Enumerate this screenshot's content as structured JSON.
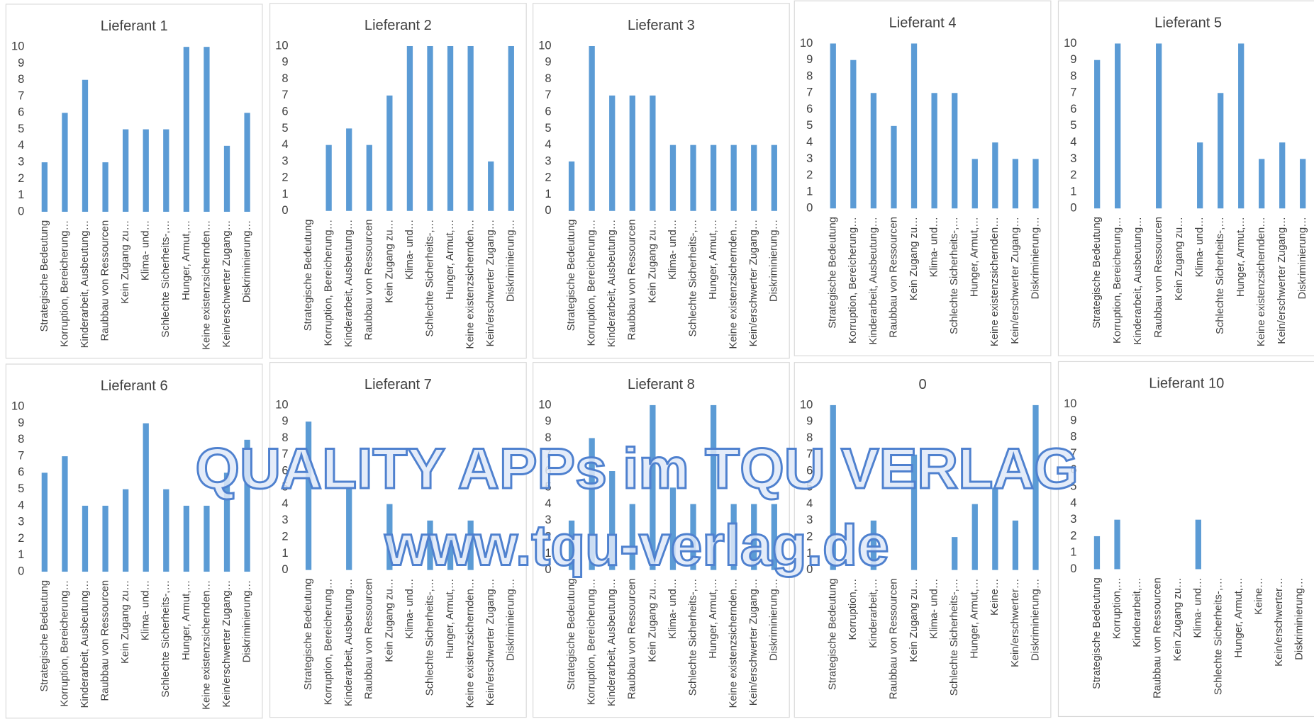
{
  "chart_data": [
    {
      "type": "bar",
      "title": "Lieferant 1",
      "categories": [
        "Strategische Bedeutung",
        "Korruption,  Bereicherung…",
        "Kinderarbeit, Ausbeutung…",
        "Raubbau von Ressourcen",
        "Kein Zugang zu…",
        "Klima- und…",
        "Schlechte Sicherheits-,…",
        "Hunger, Armut,…",
        "Keine existenzsichernden…",
        "Kein/erschwerter Zugang…",
        "Diskriminierung…"
      ],
      "values": [
        3,
        6,
        8,
        3,
        5,
        5,
        5,
        10,
        10,
        4,
        6
      ],
      "ylim": [
        0,
        10
      ],
      "yticks": [
        0,
        1,
        2,
        3,
        4,
        5,
        6,
        7,
        8,
        9,
        10
      ],
      "color": "#5b9bd5"
    },
    {
      "type": "bar",
      "title": "Lieferant 2",
      "categories": [
        "Strategische Bedeutung",
        "Korruption,  Bereicherung…",
        "Kinderarbeit, Ausbeutung…",
        "Raubbau von Ressourcen",
        "Kein Zugang zu…",
        "Klima- und…",
        "Schlechte Sicherheits-,…",
        "Hunger, Armut,…",
        "Keine existenzsichernden…",
        "Kein/erschwerter Zugang…",
        "Diskriminierung…"
      ],
      "values": [
        0,
        4,
        5,
        4,
        7,
        10,
        10,
        10,
        10,
        3,
        10
      ],
      "ylim": [
        0,
        10
      ],
      "yticks": [
        0,
        1,
        2,
        3,
        4,
        5,
        6,
        7,
        8,
        9,
        10
      ],
      "color": "#5b9bd5"
    },
    {
      "type": "bar",
      "title": "Lieferant 3",
      "categories": [
        "Strategische Bedeutung",
        "Korruption,  Bereicherung…",
        "Kinderarbeit, Ausbeutung…",
        "Raubbau von Ressourcen",
        "Kein Zugang zu…",
        "Klima- und…",
        "Schlechte Sicherheits-,…",
        "Hunger, Armut,…",
        "Keine existenzsichernden…",
        "Kein/erschwerter Zugang…",
        "Diskriminierung…"
      ],
      "values": [
        3,
        10,
        7,
        7,
        7,
        4,
        4,
        4,
        4,
        4,
        4
      ],
      "ylim": [
        0,
        10
      ],
      "yticks": [
        0,
        1,
        2,
        3,
        4,
        5,
        6,
        7,
        8,
        9,
        10
      ],
      "color": "#5b9bd5"
    },
    {
      "type": "bar",
      "title": "Lieferant 4",
      "categories": [
        "Strategische Bedeutung",
        "Korruption,  Bereicherung…",
        "Kinderarbeit, Ausbeutung…",
        "Raubbau von Ressourcen",
        "Kein Zugang zu…",
        "Klima- und…",
        "Schlechte Sicherheits-,…",
        "Hunger, Armut,…",
        "Keine existenzsichernden…",
        "Kein/erschwerter Zugang…",
        "Diskriminierung…"
      ],
      "values": [
        10,
        9,
        7,
        5,
        10,
        7,
        7,
        3,
        4,
        3,
        3
      ],
      "ylim": [
        0,
        10
      ],
      "yticks": [
        0,
        1,
        2,
        3,
        4,
        5,
        6,
        7,
        8,
        9,
        10
      ],
      "color": "#5b9bd5"
    },
    {
      "type": "bar",
      "title": "Lieferant 5",
      "categories": [
        "Strategische Bedeutung",
        "Korruption,  Bereicherung…",
        "Kinderarbeit, Ausbeutung…",
        "Raubbau von Ressourcen",
        "Kein Zugang zu…",
        "Klima- und…",
        "Schlechte Sicherheits-,…",
        "Hunger, Armut,…",
        "Keine existenzsichernden…",
        "Kein/erschwerter Zugang…",
        "Diskriminierung…"
      ],
      "values": [
        9,
        10,
        0,
        10,
        0,
        4,
        7,
        10,
        3,
        4,
        3
      ],
      "ylim": [
        0,
        10
      ],
      "yticks": [
        0,
        1,
        2,
        3,
        4,
        5,
        6,
        7,
        8,
        9,
        10
      ],
      "color": "#5b9bd5"
    },
    {
      "type": "bar",
      "title": "Lieferant 6",
      "categories": [
        "Strategische Bedeutung",
        "Korruption,  Bereicherung…",
        "Kinderarbeit, Ausbeutung…",
        "Raubbau von Ressourcen",
        "Kein Zugang zu…",
        "Klima- und…",
        "Schlechte Sicherheits-,…",
        "Hunger, Armut,…",
        "Keine existenzsichernden…",
        "Kein/erschwerter Zugang…",
        "Diskriminierung…"
      ],
      "values": [
        6,
        7,
        4,
        4,
        5,
        9,
        5,
        4,
        4,
        6,
        8
      ],
      "ylim": [
        0,
        10
      ],
      "yticks": [
        0,
        1,
        2,
        3,
        4,
        5,
        6,
        7,
        8,
        9,
        10
      ],
      "color": "#5b9bd5"
    },
    {
      "type": "bar",
      "title": "Lieferant 7",
      "categories": [
        "Strategische Bedeutung",
        "Korruption,  Bereicherung…",
        "Kinderarbeit, Ausbeutung…",
        "Raubbau von Ressourcen",
        "Kein Zugang zu…",
        "Klima- und…",
        "Schlechte Sicherheits-,…",
        "Hunger, Armut,…",
        "Keine existenzsichernden…",
        "Kein/erschwerter Zugang…",
        "Diskriminierung…"
      ],
      "values": [
        9,
        0,
        5,
        0,
        4,
        0,
        3,
        2,
        3,
        0,
        0
      ],
      "ylim": [
        0,
        10
      ],
      "yticks": [
        0,
        1,
        2,
        3,
        4,
        5,
        6,
        7,
        8,
        9,
        10
      ],
      "color": "#5b9bd5"
    },
    {
      "type": "bar",
      "title": "Lieferant 8",
      "categories": [
        "Strategische Bedeutung",
        "Korruption,  Bereicherung…",
        "Kinderarbeit, Ausbeutung…",
        "Raubbau von Ressourcen",
        "Kein Zugang zu…",
        "Klima- und…",
        "Schlechte Sicherheits-,…",
        "Hunger, Armut,…",
        "Keine existenzsichernden…",
        "Kein/erschwerter Zugang…",
        "Diskriminierung…"
      ],
      "values": [
        3,
        8,
        6,
        4,
        10,
        5,
        4,
        10,
        4,
        4,
        4
      ],
      "ylim": [
        0,
        10
      ],
      "yticks": [
        0,
        1,
        2,
        3,
        4,
        5,
        6,
        7,
        8,
        9,
        10
      ],
      "color": "#5b9bd5"
    },
    {
      "type": "bar",
      "title": "0",
      "categories": [
        "Strategische Bedeutung",
        "Korruption,…",
        "Kinderarbeit,…",
        "Raubbau von Ressourcen",
        "Kein Zugang zu…",
        "Klima- und…",
        "Schlechte Sicherheits-,…",
        "Hunger, Armut,…",
        "Keine…",
        "Kein/erschwerter…",
        "Diskriminierung…"
      ],
      "values": [
        10,
        0,
        3,
        0,
        7,
        0,
        2,
        4,
        5,
        3,
        10
      ],
      "ylim": [
        0,
        10
      ],
      "yticks": [
        0,
        1,
        2,
        3,
        4,
        5,
        6,
        7,
        8,
        9,
        10
      ],
      "color": "#5b9bd5"
    },
    {
      "type": "bar",
      "title": "Lieferant 10",
      "categories": [
        "Strategische Bedeutung",
        "Korruption,…",
        "Kinderarbeit,…",
        "Raubbau von Ressourcen",
        "Kein Zugang zu…",
        "Klima- und…",
        "Schlechte Sicherheits-,…",
        "Hunger, Armut,…",
        "Keine…",
        "Kein/erschwerter…",
        "Diskriminierung…"
      ],
      "values": [
        2,
        3,
        0,
        0,
        0,
        3,
        0,
        0,
        0,
        0,
        0
      ],
      "ylim": [
        0,
        10
      ],
      "yticks": [
        0,
        1,
        2,
        3,
        4,
        5,
        6,
        7,
        8,
        9,
        10
      ],
      "color": "#5b9bd5"
    }
  ],
  "watermark": {
    "line1": "QUALITY APPs im TQU VERLAG",
    "line2": "www.tqu-verlag.de"
  }
}
